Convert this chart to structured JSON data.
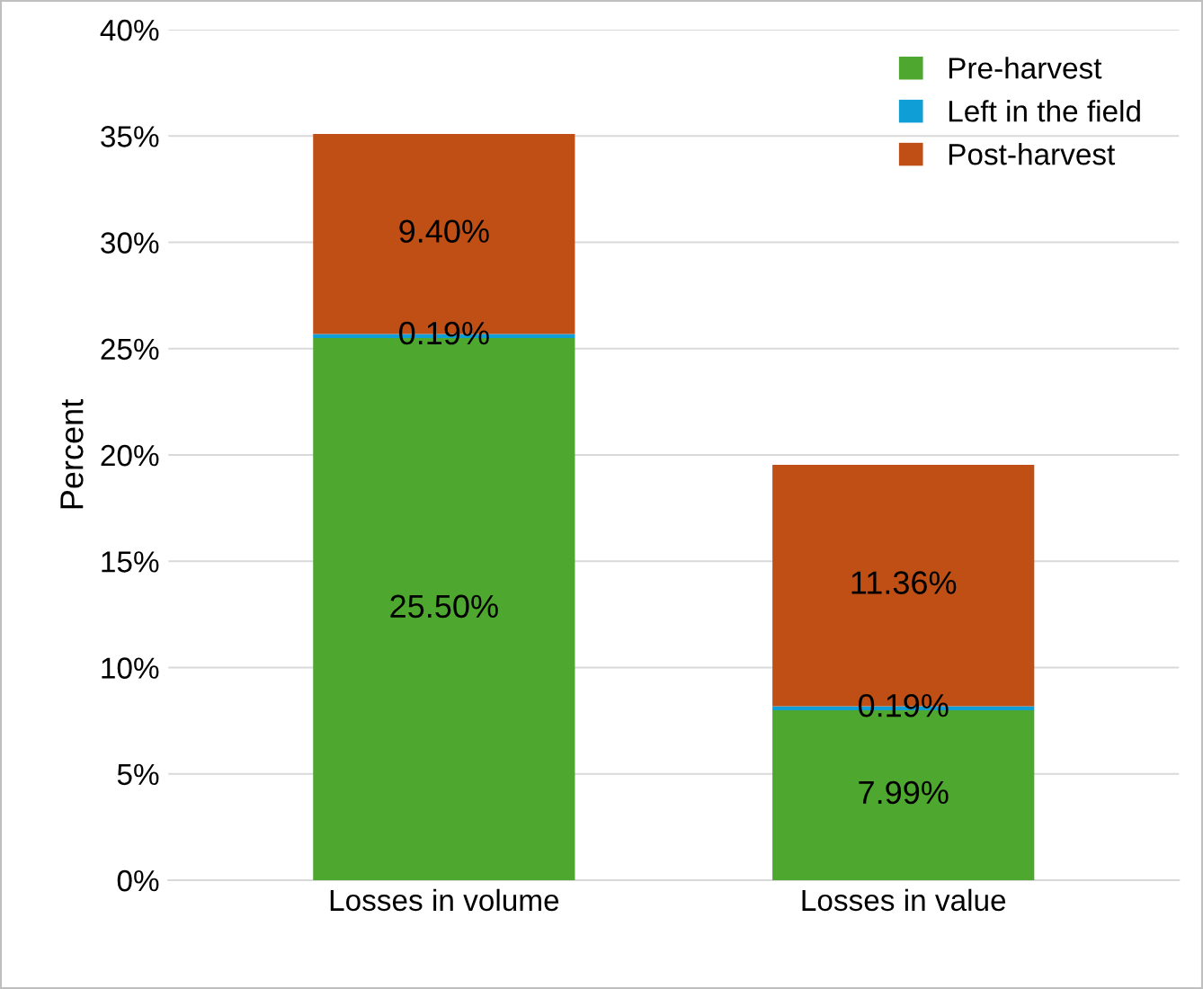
{
  "chart_data": {
    "type": "bar",
    "stacked": true,
    "ylabel": "Percent",
    "categories": [
      "Losses in volume",
      "Losses in value"
    ],
    "series": [
      {
        "name": "Pre-harvest",
        "color": "#4ea72e",
        "values": [
          25.5,
          7.99
        ],
        "value_labels": [
          "25.50%",
          "7.99%"
        ]
      },
      {
        "name": "Left in the field",
        "color": "#0f9ed5",
        "values": [
          0.19,
          0.19
        ],
        "value_labels": [
          "0.19%",
          "0.19%"
        ]
      },
      {
        "name": "Post-harvest",
        "color": "#c04f15",
        "values": [
          9.4,
          11.36
        ],
        "value_labels": [
          "9.40%",
          "11.36%"
        ]
      }
    ],
    "ylim": [
      0,
      40
    ],
    "yticks": [
      {
        "value": 0,
        "label": "0%"
      },
      {
        "value": 5,
        "label": "5%"
      },
      {
        "value": 10,
        "label": "10%"
      },
      {
        "value": 15,
        "label": "15%"
      },
      {
        "value": 20,
        "label": "20%"
      },
      {
        "value": 25,
        "label": "25%"
      },
      {
        "value": 30,
        "label": "30%"
      },
      {
        "value": 35,
        "label": "35%"
      },
      {
        "value": 40,
        "label": "40%"
      }
    ],
    "grid": "y",
    "legend": "top right"
  }
}
